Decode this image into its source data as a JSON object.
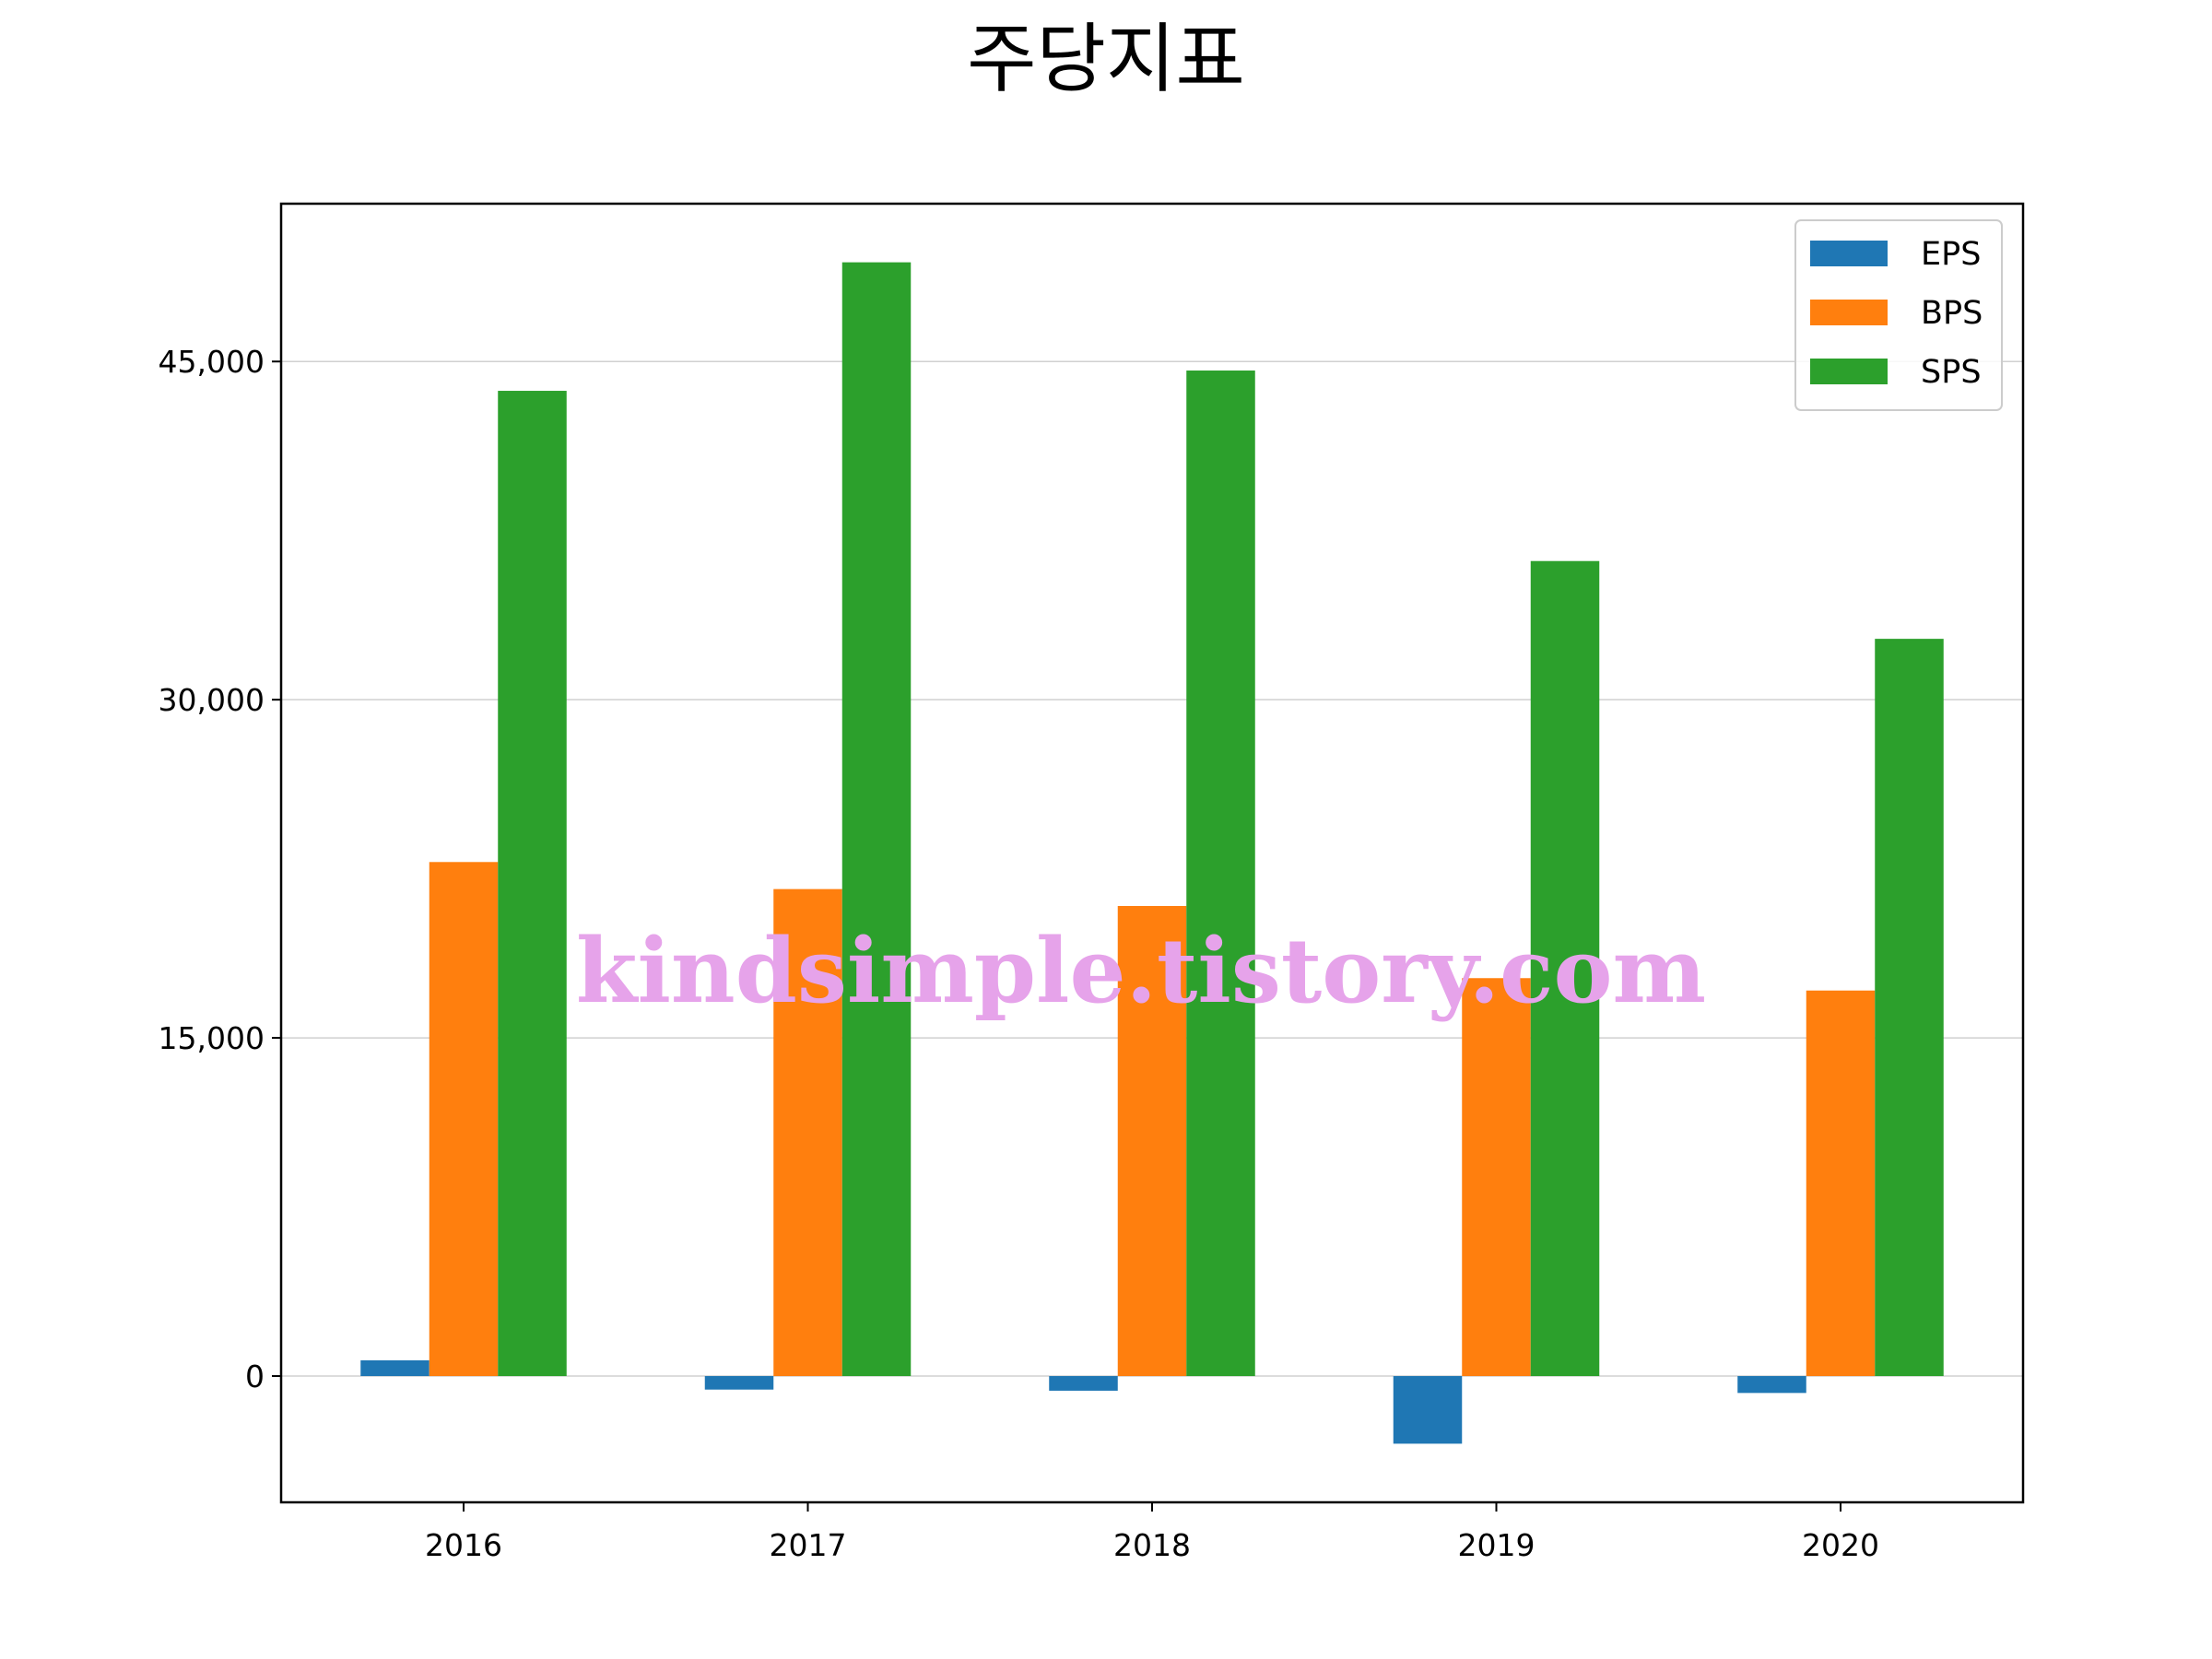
{
  "chart_data": {
    "type": "bar",
    "title": "주당지표",
    "xlabel": "",
    "ylabel": "",
    "categories": [
      "2016",
      "2017",
      "2018",
      "2019",
      "2020"
    ],
    "series": [
      {
        "name": "EPS",
        "color": "#1f77b4",
        "values": [
          700,
          -600,
          -650,
          -3000,
          -750
        ]
      },
      {
        "name": "BPS",
        "color": "#ff7f0e",
        "values": [
          22800,
          21600,
          20850,
          17650,
          17100
        ]
      },
      {
        "name": "SPS",
        "color": "#2ca02c",
        "values": [
          43700,
          49400,
          44600,
          36150,
          32700
        ]
      }
    ],
    "ylim": [
      -5600,
      52000
    ],
    "yticks": [
      0,
      15000,
      30000,
      45000
    ],
    "ytick_labels": [
      "0",
      "15,000",
      "30,000",
      "45,000"
    ],
    "grid": {
      "y": true,
      "x": false
    },
    "legend_position": "top-right",
    "watermark": "kindsimple.tistory.com"
  }
}
